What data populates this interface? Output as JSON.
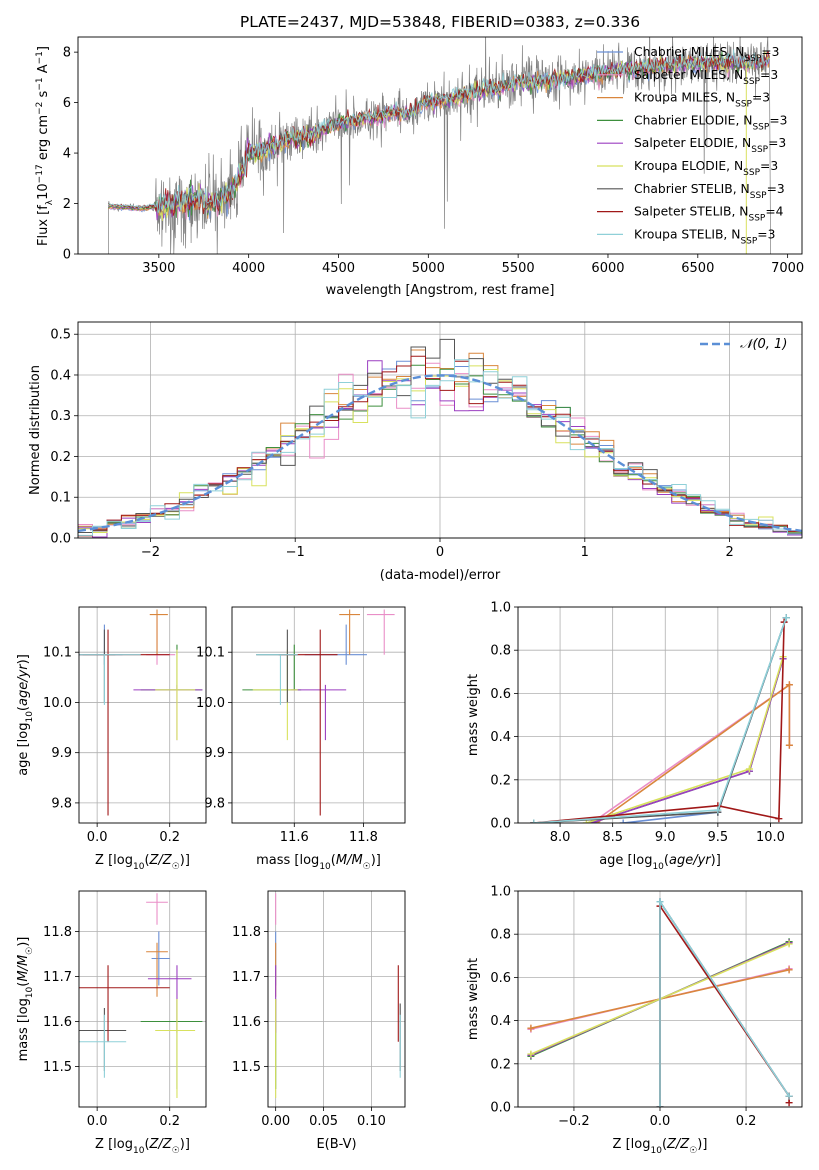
{
  "figure_title": "PLATE=2437, MJD=53848, FIBERID=0383, z=0.336",
  "colors": {
    "Chabrier MILES": "#6a8fd5",
    "Salpeter MILES": "#e98ec7",
    "Kroupa MILES": "#d9863d",
    "Chabrier ELODIE": "#3d8f3d",
    "Salpeter ELODIE": "#9b3fc1",
    "Kroupa ELODIE": "#d8e15e",
    "Chabrier STELIB": "#555555",
    "Salpeter STELIB": "#a01818",
    "Kroupa STELIB": "#8fd0d8",
    "data": "#808080",
    "normal": "#5b8fd6"
  },
  "chart_data": [
    {
      "id": "spectrum",
      "type": "line",
      "title": "PLATE=2437, MJD=53848, FIBERID=0383, z=0.336",
      "xlabel": "wavelength [Angstrom, rest frame]",
      "ylabel": "Flux [fλ 10⁻¹⁷ erg cm⁻² s⁻¹ A⁻¹]",
      "xlim": [
        3050,
        7080
      ],
      "ylim": [
        0,
        8.6
      ],
      "xticks": [
        3500,
        4000,
        4500,
        5000,
        5500,
        6000,
        6500,
        7000
      ],
      "yticks": [
        0,
        2,
        4,
        6,
        8
      ],
      "legend_position": "top-right",
      "legend": [
        {
          "label": "Chabrier MILES, N",
          "sub": "SSP",
          "tail": "=3"
        },
        {
          "label": "Salpeter MILES, N",
          "sub": "SSP",
          "tail": "=3"
        },
        {
          "label": "Kroupa MILES, N",
          "sub": "SSP",
          "tail": "=3"
        },
        {
          "label": "Chabrier ELODIE, N",
          "sub": "SSP",
          "tail": "=3"
        },
        {
          "label": "Salpeter ELODIE, N",
          "sub": "SSP",
          "tail": "=3"
        },
        {
          "label": "Kroupa ELODIE, N",
          "sub": "SSP",
          "tail": "=3"
        },
        {
          "label": "Chabrier STELIB, N",
          "sub": "SSP",
          "tail": "=3"
        },
        {
          "label": "Salpeter STELIB, N",
          "sub": "SSP",
          "tail": "=4"
        },
        {
          "label": "Kroupa STELIB, N",
          "sub": "SSP",
          "tail": "=3"
        }
      ],
      "continuum": {
        "x": [
          3220,
          3400,
          3500,
          3600,
          3700,
          3800,
          3900,
          4000,
          4100,
          4200,
          4300,
          4400,
          4500,
          4600,
          4700,
          4800,
          4900,
          5000,
          5100,
          5200,
          5300,
          5400,
          5500,
          5600,
          5700,
          5800,
          5900,
          6000,
          6100,
          6200,
          6300,
          6400,
          6500,
          6600,
          6700,
          6800,
          6900
        ],
        "y": [
          1.9,
          1.8,
          1.9,
          2.0,
          2.2,
          2.0,
          2.4,
          3.9,
          4.2,
          4.5,
          4.6,
          4.9,
          5.2,
          5.3,
          5.4,
          5.6,
          5.6,
          6.0,
          6.1,
          6.3,
          6.5,
          6.6,
          6.8,
          6.8,
          6.9,
          7.0,
          7.1,
          7.2,
          7.3,
          7.35,
          7.45,
          7.5,
          7.55,
          7.6,
          7.55,
          7.6,
          7.7
        ]
      }
    },
    {
      "id": "residuals",
      "type": "step",
      "xlabel": "(data-model)/error",
      "ylabel": "Normed distribution",
      "xlim": [
        -2.5,
        2.5
      ],
      "ylim": [
        0,
        0.53
      ],
      "xticks": [
        -2,
        -1,
        0,
        1,
        2
      ],
      "yticks": [
        0.0,
        0.1,
        0.2,
        0.3,
        0.4,
        0.5
      ],
      "grid": true,
      "legend_position": "top-right",
      "legend": [
        {
          "label": "𝒩(0, 1)",
          "style": "dashed"
        }
      ],
      "bin_width": 0.1
    },
    {
      "id": "age-vs-Z",
      "type": "errorbar",
      "xlabel": "Z [log10(Z/Z☉)]",
      "ylabel": "age  [log10(age/yr)]",
      "xlim": [
        -0.05,
        0.3
      ],
      "ylim": [
        9.76,
        10.19
      ],
      "xticks": [
        0.0,
        0.2
      ],
      "yticks": [
        9.8,
        9.9,
        10.0,
        10.1
      ],
      "grid": true,
      "points": [
        {
          "model": "Chabrier MILES",
          "x": 0.02,
          "y": 10.095,
          "xerr": [
            0.1,
            0.05
          ],
          "yerr": [
            0.02,
            0.06
          ]
        },
        {
          "model": "Salpeter MILES",
          "x": 0.165,
          "y": 10.095,
          "xerr": [
            0.03,
            0.05
          ],
          "yerr": [
            0.02,
            0.08
          ]
        },
        {
          "model": "Kroupa MILES",
          "x": 0.165,
          "y": 10.175,
          "xerr": [
            0.02,
            0.03
          ],
          "yerr": [
            0.08,
            0.01
          ]
        },
        {
          "model": "Chabrier ELODIE",
          "x": 0.22,
          "y": 10.025,
          "xerr": [
            0.1,
            0.07
          ],
          "yerr": [
            0.0,
            0.09
          ]
        },
        {
          "model": "Salpeter ELODIE",
          "x": 0.22,
          "y": 10.025,
          "xerr": [
            0.12,
            0.07
          ],
          "yerr": [
            0.1,
            0.01
          ]
        },
        {
          "model": "Kroupa ELODIE",
          "x": 0.22,
          "y": 10.025,
          "xerr": [
            0.06,
            0.05
          ],
          "yerr": [
            0.1,
            0.08
          ]
        },
        {
          "model": "Chabrier STELIB",
          "x": 0.02,
          "y": 10.095,
          "xerr": [
            0.06,
            0.03
          ],
          "yerr": [
            0.095,
            0.05
          ]
        },
        {
          "model": "Salpeter STELIB",
          "x": 0.03,
          "y": 10.095,
          "xerr": [
            0.08,
            0.17
          ],
          "yerr": [
            0.32,
            0.05
          ]
        },
        {
          "model": "Kroupa STELIB",
          "x": 0.02,
          "y": 10.095,
          "xerr": [
            0.07,
            0.1
          ],
          "yerr": [
            0.1,
            0.0
          ]
        }
      ]
    },
    {
      "id": "age-vs-mass",
      "type": "errorbar",
      "xlabel": "mass [log10(M/M☉)]",
      "ylabel": "",
      "xlim": [
        11.42,
        11.92
      ],
      "ylim": [
        9.76,
        10.19
      ],
      "xticks": [
        11.6,
        11.8
      ],
      "yticks": [
        9.8,
        9.9,
        10.0,
        10.1
      ],
      "grid": true,
      "points": [
        {
          "model": "Chabrier MILES",
          "x": 11.75,
          "y": 10.095,
          "xerr": [
            0.12,
            0.06
          ],
          "yerr": [
            0.02,
            0.06
          ]
        },
        {
          "model": "Salpeter MILES",
          "x": 11.86,
          "y": 10.175,
          "xerr": [
            0.05,
            0.03
          ],
          "yerr": [
            0.08,
            0.01
          ]
        },
        {
          "model": "Kroupa MILES",
          "x": 11.76,
          "y": 10.175,
          "xerr": [
            0.03,
            0.03
          ],
          "yerr": [
            0.08,
            0.01
          ]
        },
        {
          "model": "Chabrier ELODIE",
          "x": 11.6,
          "y": 10.025,
          "xerr": [
            0.15,
            0.02
          ],
          "yerr": [
            0.0,
            0.09
          ]
        },
        {
          "model": "Salpeter ELODIE",
          "x": 11.69,
          "y": 10.025,
          "xerr": [
            0.1,
            0.06
          ],
          "yerr": [
            0.1,
            0.01
          ]
        },
        {
          "model": "Kroupa ELODIE",
          "x": 11.58,
          "y": 10.025,
          "xerr": [
            0.1,
            0.03
          ],
          "yerr": [
            0.1,
            0.08
          ]
        },
        {
          "model": "Chabrier STELIB",
          "x": 11.58,
          "y": 10.095,
          "xerr": [
            0.09,
            0.03
          ],
          "yerr": [
            0.095,
            0.05
          ]
        },
        {
          "model": "Salpeter STELIB",
          "x": 11.675,
          "y": 10.095,
          "xerr": [
            0.12,
            0.05
          ],
          "yerr": [
            0.32,
            0.05
          ]
        },
        {
          "model": "Kroupa STELIB",
          "x": 11.56,
          "y": 10.095,
          "xerr": [
            0.07,
            0.05
          ],
          "yerr": [
            0.1,
            0.0
          ]
        }
      ]
    },
    {
      "id": "mass-weight-vs-age",
      "type": "line",
      "xlabel": "age  [log10(age/yr)]",
      "ylabel": "mass weight",
      "xlim": [
        7.6,
        10.3
      ],
      "ylim": [
        0,
        1.0
      ],
      "xticks": [
        8.0,
        8.5,
        9.0,
        9.5,
        10.0
      ],
      "yticks": [
        0.0,
        0.2,
        0.4,
        0.6,
        0.8,
        1.0
      ],
      "grid": true,
      "series": [
        {
          "model": "Chabrier MILES",
          "x": [
            8.6,
            9.5,
            10.15
          ],
          "y": [
            0.0,
            0.05,
            0.95
          ]
        },
        {
          "model": "Salpeter MILES",
          "x": [
            8.3,
            10.18,
            10.18
          ],
          "y": [
            0.0,
            0.64,
            0.36
          ]
        },
        {
          "model": "Kroupa MILES",
          "x": [
            8.35,
            10.18,
            10.18
          ],
          "y": [
            0.0,
            0.64,
            0.36
          ]
        },
        {
          "model": "Chabrier ELODIE",
          "x": [
            8.3,
            9.8,
            10.12
          ],
          "y": [
            0.0,
            0.24,
            0.76
          ]
        },
        {
          "model": "Salpeter ELODIE",
          "x": [
            8.3,
            9.8,
            10.12
          ],
          "y": [
            0.0,
            0.24,
            0.76
          ]
        },
        {
          "model": "Kroupa ELODIE",
          "x": [
            8.25,
            9.8,
            10.12
          ],
          "y": [
            0.0,
            0.25,
            0.77
          ]
        },
        {
          "model": "Chabrier STELIB",
          "x": [
            7.75,
            9.5,
            10.15
          ],
          "y": [
            0.0,
            0.05,
            0.95
          ]
        },
        {
          "model": "Salpeter STELIB",
          "x": [
            7.75,
            9.5,
            10.08,
            10.13
          ],
          "y": [
            0.0,
            0.08,
            0.02,
            0.93
          ]
        },
        {
          "model": "Kroupa STELIB",
          "x": [
            7.75,
            9.5,
            10.15
          ],
          "y": [
            0.0,
            0.06,
            0.95
          ]
        }
      ]
    },
    {
      "id": "mass-vs-Z",
      "type": "errorbar",
      "xlabel": "Z [log10(Z/Z☉)]",
      "ylabel": "mass [log10(M/M☉)]",
      "xlim": [
        -0.05,
        0.3
      ],
      "ylim": [
        11.41,
        11.89
      ],
      "xticks": [
        0.0,
        0.2
      ],
      "yticks": [
        11.5,
        11.6,
        11.7,
        11.8
      ],
      "grid": true,
      "points": [
        {
          "model": "Chabrier MILES",
          "x": 0.17,
          "y": 11.74,
          "xerr": [
            0.02,
            0.03
          ],
          "yerr": [
            0.06,
            0.06
          ]
        },
        {
          "model": "Salpeter MILES",
          "x": 0.165,
          "y": 11.865,
          "xerr": [
            0.03,
            0.03
          ],
          "yerr": [
            0.05,
            0.02
          ]
        },
        {
          "model": "Kroupa MILES",
          "x": 0.165,
          "y": 11.755,
          "xerr": [
            0.03,
            0.03
          ],
          "yerr": [
            0.1,
            0.02
          ]
        },
        {
          "model": "Chabrier ELODIE",
          "x": 0.22,
          "y": 11.6,
          "xerr": [
            0.1,
            0.07
          ],
          "yerr": [
            0.15,
            0.05
          ]
        },
        {
          "model": "Salpeter ELODIE",
          "x": 0.22,
          "y": 11.695,
          "xerr": [
            0.08,
            0.04
          ],
          "yerr": [
            0.12,
            0.03
          ]
        },
        {
          "model": "Kroupa ELODIE",
          "x": 0.22,
          "y": 11.58,
          "xerr": [
            0.06,
            0.05
          ],
          "yerr": [
            0.15,
            0.07
          ]
        },
        {
          "model": "Chabrier STELIB",
          "x": 0.02,
          "y": 11.58,
          "xerr": [
            0.07,
            0.06
          ],
          "yerr": [
            0.09,
            0.05
          ]
        },
        {
          "model": "Salpeter STELIB",
          "x": 0.03,
          "y": 11.675,
          "xerr": [
            0.08,
            0.17
          ],
          "yerr": [
            0.12,
            0.05
          ]
        },
        {
          "model": "Kroupa STELIB",
          "x": 0.02,
          "y": 11.555,
          "xerr": [
            0.07,
            0.06
          ],
          "yerr": [
            0.08,
            0.06
          ]
        }
      ]
    },
    {
      "id": "mass-vs-EBV",
      "type": "errorbar",
      "xlabel": "E(B-V)",
      "ylabel": "",
      "xlim": [
        -0.008,
        0.135
      ],
      "ylim": [
        11.41,
        11.89
      ],
      "xticks": [
        0.0,
        0.05,
        0.1
      ],
      "yticks": [
        11.5,
        11.6,
        11.7,
        11.8
      ],
      "grid": true,
      "points": [
        {
          "model": "Chabrier MILES",
          "x": 0.0,
          "y": 11.74,
          "xerr": [
            0,
            0
          ],
          "yerr": [
            0.06,
            0.06
          ]
        },
        {
          "model": "Salpeter MILES",
          "x": 0.0,
          "y": 11.865,
          "xerr": [
            0,
            0
          ],
          "yerr": [
            0.05,
            0.02
          ]
        },
        {
          "model": "Kroupa MILES",
          "x": 0.0,
          "y": 11.755,
          "xerr": [
            0,
            0
          ],
          "yerr": [
            0.1,
            0.02
          ]
        },
        {
          "model": "Chabrier ELODIE",
          "x": 0.0,
          "y": 11.6,
          "xerr": [
            0,
            0
          ],
          "yerr": [
            0.15,
            0.05
          ]
        },
        {
          "model": "Salpeter ELODIE",
          "x": 0.0,
          "y": 11.695,
          "xerr": [
            0,
            0
          ],
          "yerr": [
            0.12,
            0.03
          ]
        },
        {
          "model": "Kroupa ELODIE",
          "x": 0.0,
          "y": 11.58,
          "xerr": [
            0,
            0
          ],
          "yerr": [
            0.15,
            0.07
          ]
        },
        {
          "model": "Chabrier STELIB",
          "x": 0.13,
          "y": 11.58,
          "xerr": [
            0,
            0
          ],
          "yerr": [
            0.09,
            0.06
          ]
        },
        {
          "model": "Salpeter STELIB",
          "x": 0.128,
          "y": 11.675,
          "xerr": [
            0,
            0
          ],
          "yerr": [
            0.12,
            0.05
          ]
        },
        {
          "model": "Kroupa STELIB",
          "x": 0.13,
          "y": 11.555,
          "xerr": [
            0,
            0
          ],
          "yerr": [
            0.08,
            0.06
          ]
        }
      ]
    },
    {
      "id": "mass-weight-vs-Z",
      "type": "line",
      "xlabel": "Z [log10(Z/Z☉)]",
      "ylabel": "mass weight",
      "xlim": [
        -0.33,
        0.33
      ],
      "ylim": [
        0,
        1.0
      ],
      "xticks": [
        -0.2,
        0.0,
        0.2
      ],
      "yticks": [
        0.0,
        0.2,
        0.4,
        0.6,
        0.8,
        1.0
      ],
      "grid": true,
      "series": [
        {
          "model": "Chabrier MILES",
          "x": [
            0.0,
            0.0,
            0.3
          ],
          "y": [
            0.0,
            0.95,
            0.05
          ]
        },
        {
          "model": "Salpeter MILES",
          "x": [
            -0.3,
            0.3
          ],
          "y": [
            0.36,
            0.64
          ]
        },
        {
          "model": "Kroupa MILES",
          "x": [
            -0.3,
            0.3
          ],
          "y": [
            0.365,
            0.635
          ]
        },
        {
          "model": "Chabrier ELODIE",
          "x": [
            -0.3,
            0.3
          ],
          "y": [
            0.235,
            0.765
          ]
        },
        {
          "model": "Salpeter ELODIE",
          "x": [
            -0.3,
            0.3
          ],
          "y": [
            0.24,
            0.76
          ]
        },
        {
          "model": "Kroupa ELODIE",
          "x": [
            -0.3,
            0.3
          ],
          "y": [
            0.245,
            0.755
          ]
        },
        {
          "model": "Chabrier STELIB",
          "x": [
            0.0,
            0.0,
            0.3
          ],
          "y": [
            0.0,
            0.95,
            0.05
          ]
        },
        {
          "model": "Salpeter STELIB",
          "x": [
            0.0,
            0.0,
            0.3,
            0.3
          ],
          "y": [
            0.0,
            0.93,
            0.05,
            0.02
          ]
        },
        {
          "model": "Kroupa STELIB",
          "x": [
            0.0,
            0.0,
            0.3
          ],
          "y": [
            0.0,
            0.95,
            0.05
          ]
        }
      ]
    }
  ]
}
